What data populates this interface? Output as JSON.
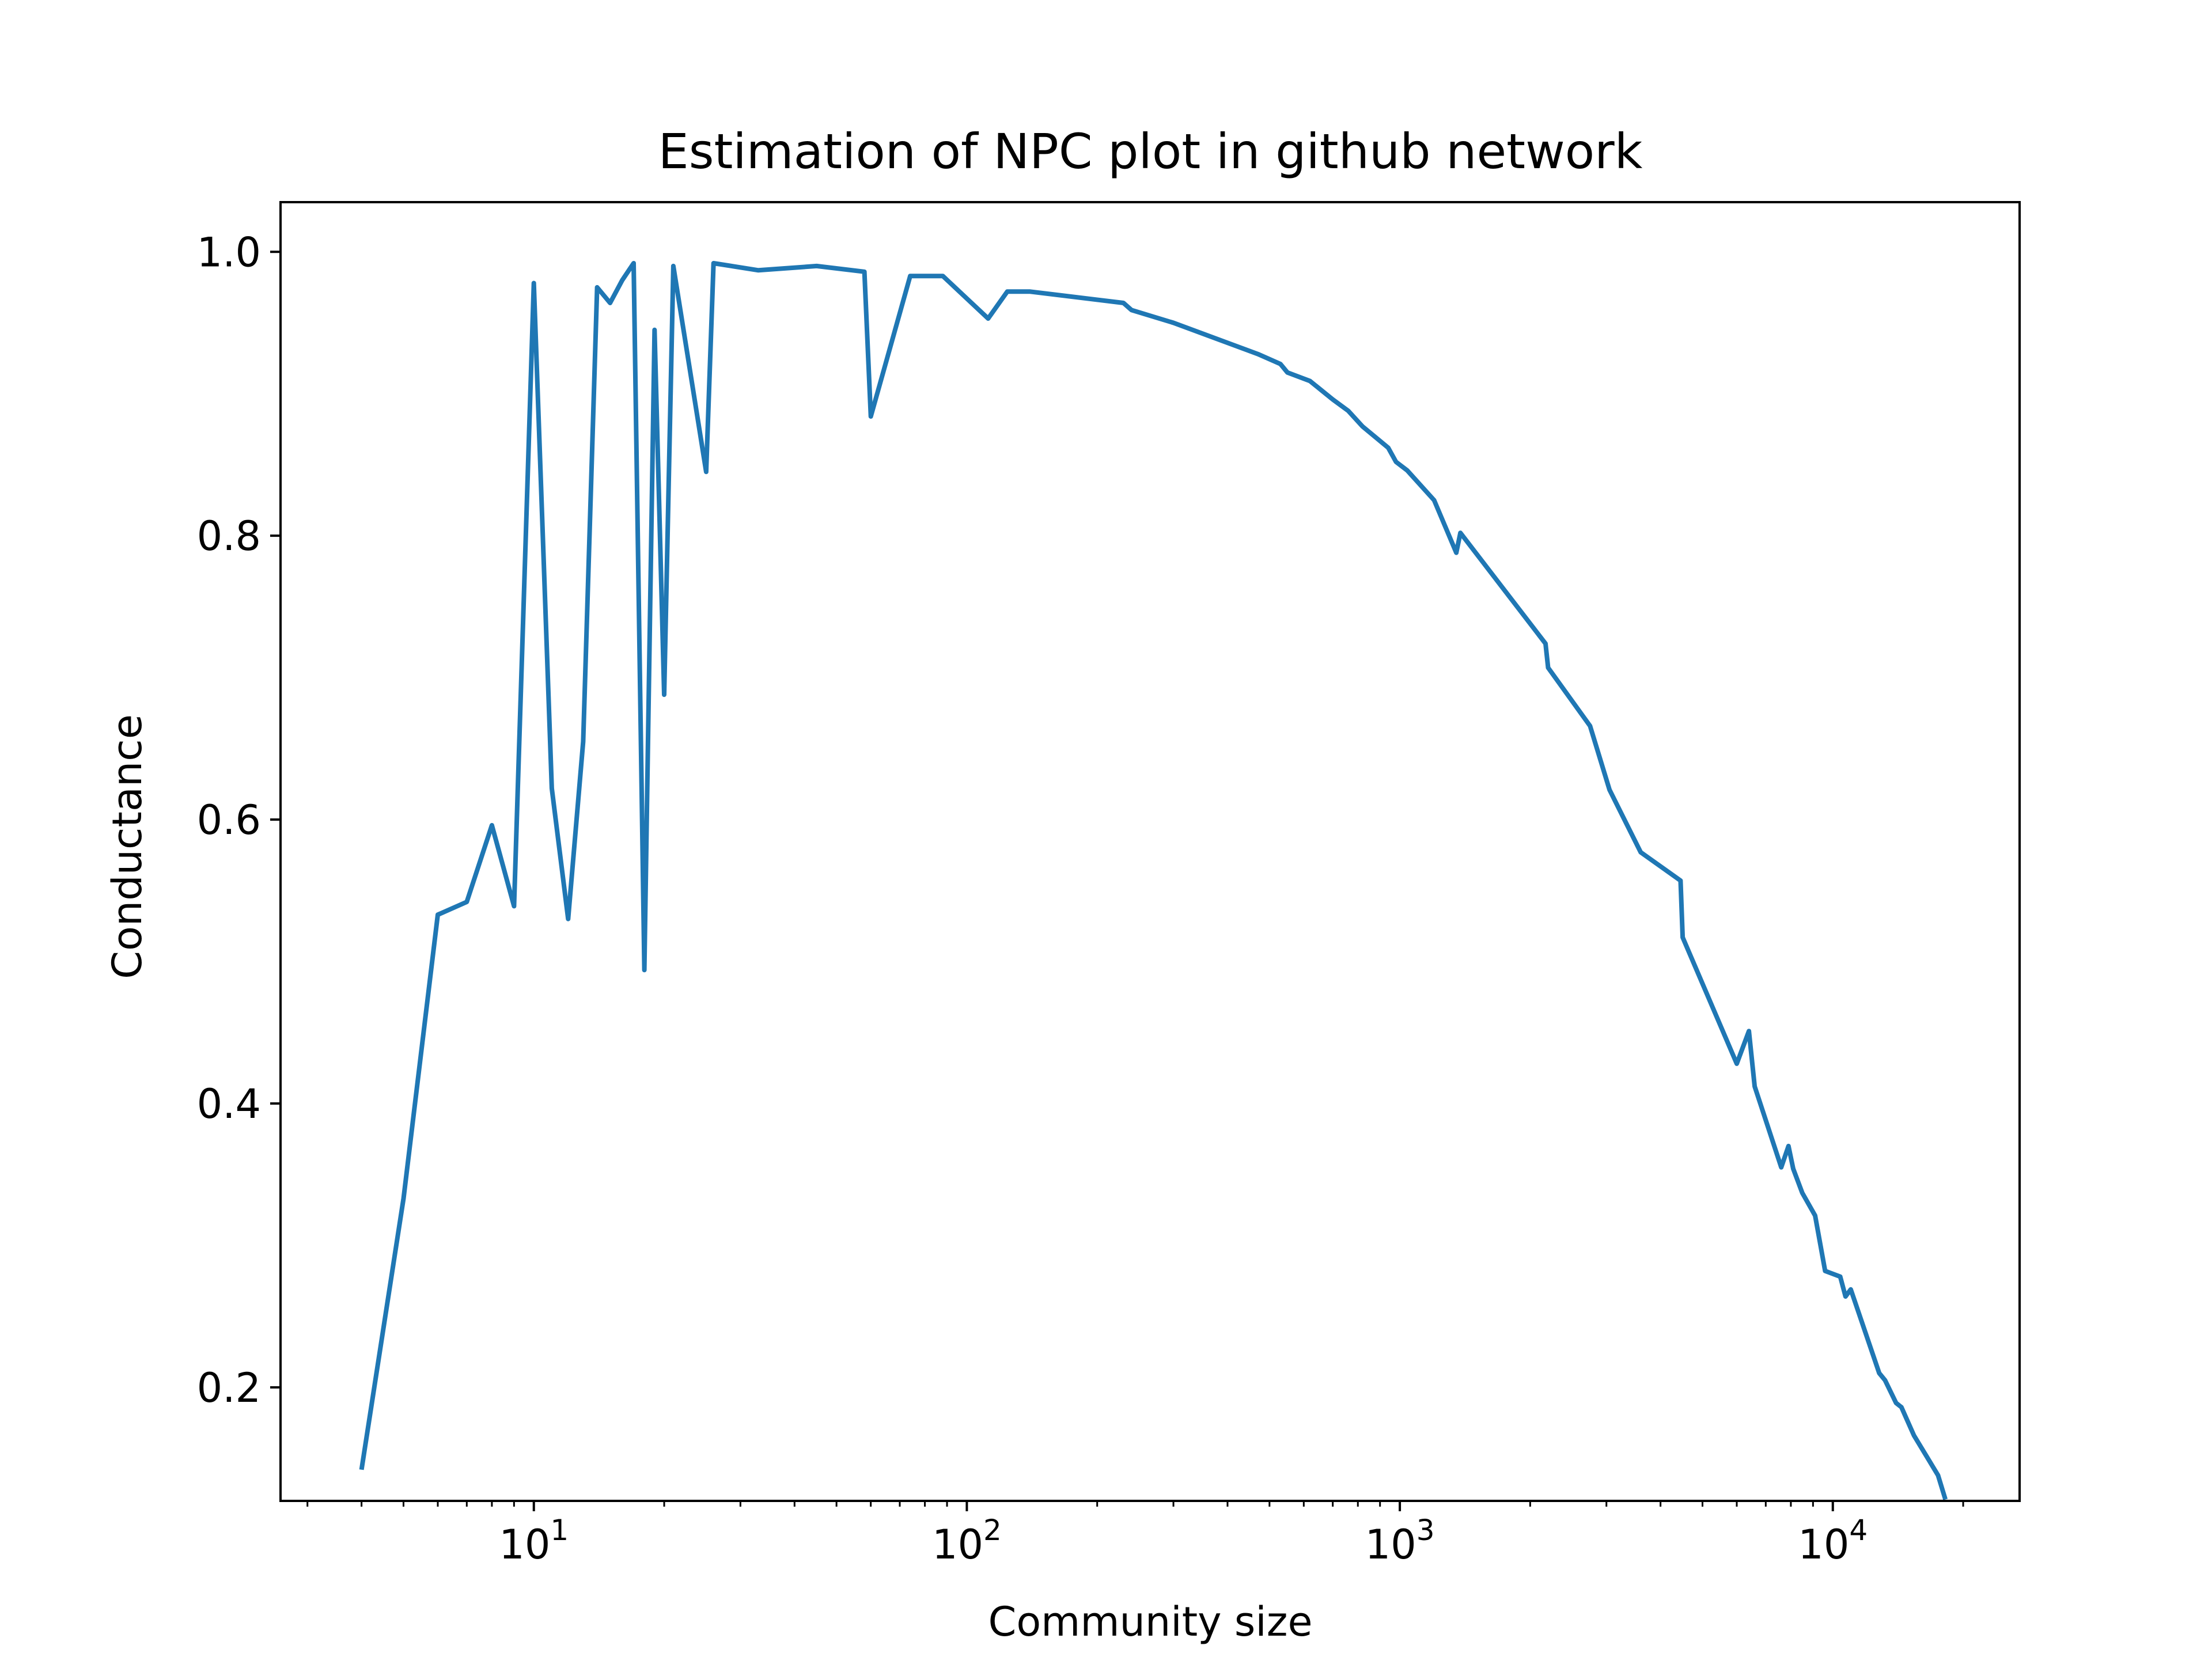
{
  "chart_data": {
    "type": "line",
    "title": "Estimation of NPC plot in github network",
    "xlabel": "Community size",
    "ylabel": "Conductance",
    "x_scale": "log",
    "xlim": [
      2.6,
      27000
    ],
    "ylim": [
      0.12,
      1.035
    ],
    "grid": false,
    "line_color": "#1f77b4",
    "x_ticks": [
      {
        "value": 10,
        "base": "10",
        "exp": "1"
      },
      {
        "value": 100,
        "base": "10",
        "exp": "2"
      },
      {
        "value": 1000,
        "base": "10",
        "exp": "3"
      },
      {
        "value": 10000,
        "base": "10",
        "exp": "4"
      }
    ],
    "y_ticks": [
      {
        "value": 0.2,
        "label": "0.2"
      },
      {
        "value": 0.4,
        "label": "0.4"
      },
      {
        "value": 0.6,
        "label": "0.6"
      },
      {
        "value": 0.8,
        "label": "0.8"
      },
      {
        "value": 1.0,
        "label": "1.0"
      }
    ],
    "series": [
      {
        "points": [
          [
            4,
            0.142
          ],
          [
            5,
            0.333
          ],
          [
            6,
            0.533
          ],
          [
            7,
            0.542
          ],
          [
            8,
            0.596
          ],
          [
            9,
            0.539
          ],
          [
            10,
            0.978
          ],
          [
            11,
            0.622
          ],
          [
            12,
            0.53
          ],
          [
            13,
            0.655
          ],
          [
            14,
            0.975
          ],
          [
            15,
            0.964
          ],
          [
            16,
            0.98
          ],
          [
            17,
            0.992
          ],
          [
            18,
            0.494
          ],
          [
            19,
            0.945
          ],
          [
            20,
            0.688
          ],
          [
            21,
            0.99
          ],
          [
            25,
            0.845
          ],
          [
            26,
            0.992
          ],
          [
            33,
            0.987
          ],
          [
            45,
            0.99
          ],
          [
            58,
            0.986
          ],
          [
            60,
            0.884
          ],
          [
            74,
            0.983
          ],
          [
            88,
            0.983
          ],
          [
            112,
            0.953
          ],
          [
            124,
            0.972
          ],
          [
            140,
            0.972
          ],
          [
            230,
            0.964
          ],
          [
            240,
            0.959
          ],
          [
            300,
            0.95
          ],
          [
            470,
            0.928
          ],
          [
            530,
            0.921
          ],
          [
            550,
            0.915
          ],
          [
            620,
            0.909
          ],
          [
            700,
            0.896
          ],
          [
            760,
            0.888
          ],
          [
            820,
            0.877
          ],
          [
            940,
            0.862
          ],
          [
            980,
            0.852
          ],
          [
            1040,
            0.846
          ],
          [
            1200,
            0.825
          ],
          [
            1350,
            0.788
          ],
          [
            1380,
            0.802
          ],
          [
            2170,
            0.724
          ],
          [
            2200,
            0.707
          ],
          [
            2750,
            0.666
          ],
          [
            3050,
            0.621
          ],
          [
            3600,
            0.577
          ],
          [
            4450,
            0.557
          ],
          [
            4500,
            0.517
          ],
          [
            6000,
            0.428
          ],
          [
            6400,
            0.451
          ],
          [
            6600,
            0.412
          ],
          [
            7600,
            0.355
          ],
          [
            7900,
            0.37
          ],
          [
            8100,
            0.354
          ],
          [
            8500,
            0.337
          ],
          [
            9100,
            0.321
          ],
          [
            9600,
            0.282
          ],
          [
            10400,
            0.278
          ],
          [
            10700,
            0.264
          ],
          [
            11000,
            0.269
          ],
          [
            12800,
            0.21
          ],
          [
            13200,
            0.205
          ],
          [
            14000,
            0.189
          ],
          [
            14400,
            0.186
          ],
          [
            15400,
            0.166
          ],
          [
            16800,
            0.147
          ],
          [
            17500,
            0.138
          ],
          [
            18200,
            0.121
          ]
        ]
      }
    ]
  }
}
